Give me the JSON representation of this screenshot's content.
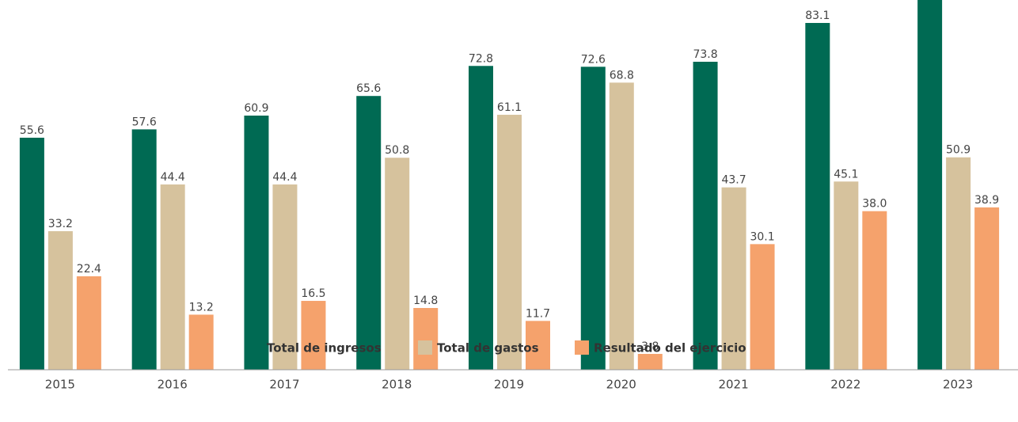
{
  "chart_data": {
    "type": "bar",
    "categories": [
      "2015",
      "2016",
      "2017",
      "2018",
      "2019",
      "2020",
      "2021",
      "2022",
      "2023"
    ],
    "series": [
      {
        "name": "Total de ingresos",
        "color": "#006a53",
        "values": [
          55.6,
          57.6,
          60.9,
          65.6,
          72.8,
          72.6,
          73.8,
          83.1,
          89.8
        ],
        "value_labels": [
          "55.6",
          "57.6",
          "60.9",
          "65.6",
          "72.8",
          "72.6",
          "73.8",
          "83.1",
          null
        ]
      },
      {
        "name": "Total de gastos",
        "color": "#d6c29d",
        "values": [
          33.2,
          44.4,
          44.4,
          50.8,
          61.1,
          68.8,
          43.7,
          45.1,
          50.9
        ],
        "value_labels": [
          "33.2",
          "44.4",
          "44.4",
          "50.8",
          "61.1",
          "68.8",
          "43.7",
          "45.1",
          "50.9"
        ]
      },
      {
        "name": "Resultado del ejercicio",
        "color": "#f5a26c",
        "values": [
          22.4,
          13.2,
          16.5,
          14.8,
          11.7,
          3.8,
          30.1,
          38.0,
          38.9
        ],
        "value_labels": [
          "22.4",
          "13.2",
          "16.5",
          "14.8",
          "11.7",
          "3.8",
          "30.1",
          "38.0",
          "38.9"
        ]
      }
    ],
    "ylim": [
      0,
      88.6
    ],
    "legend": "bottom"
  }
}
